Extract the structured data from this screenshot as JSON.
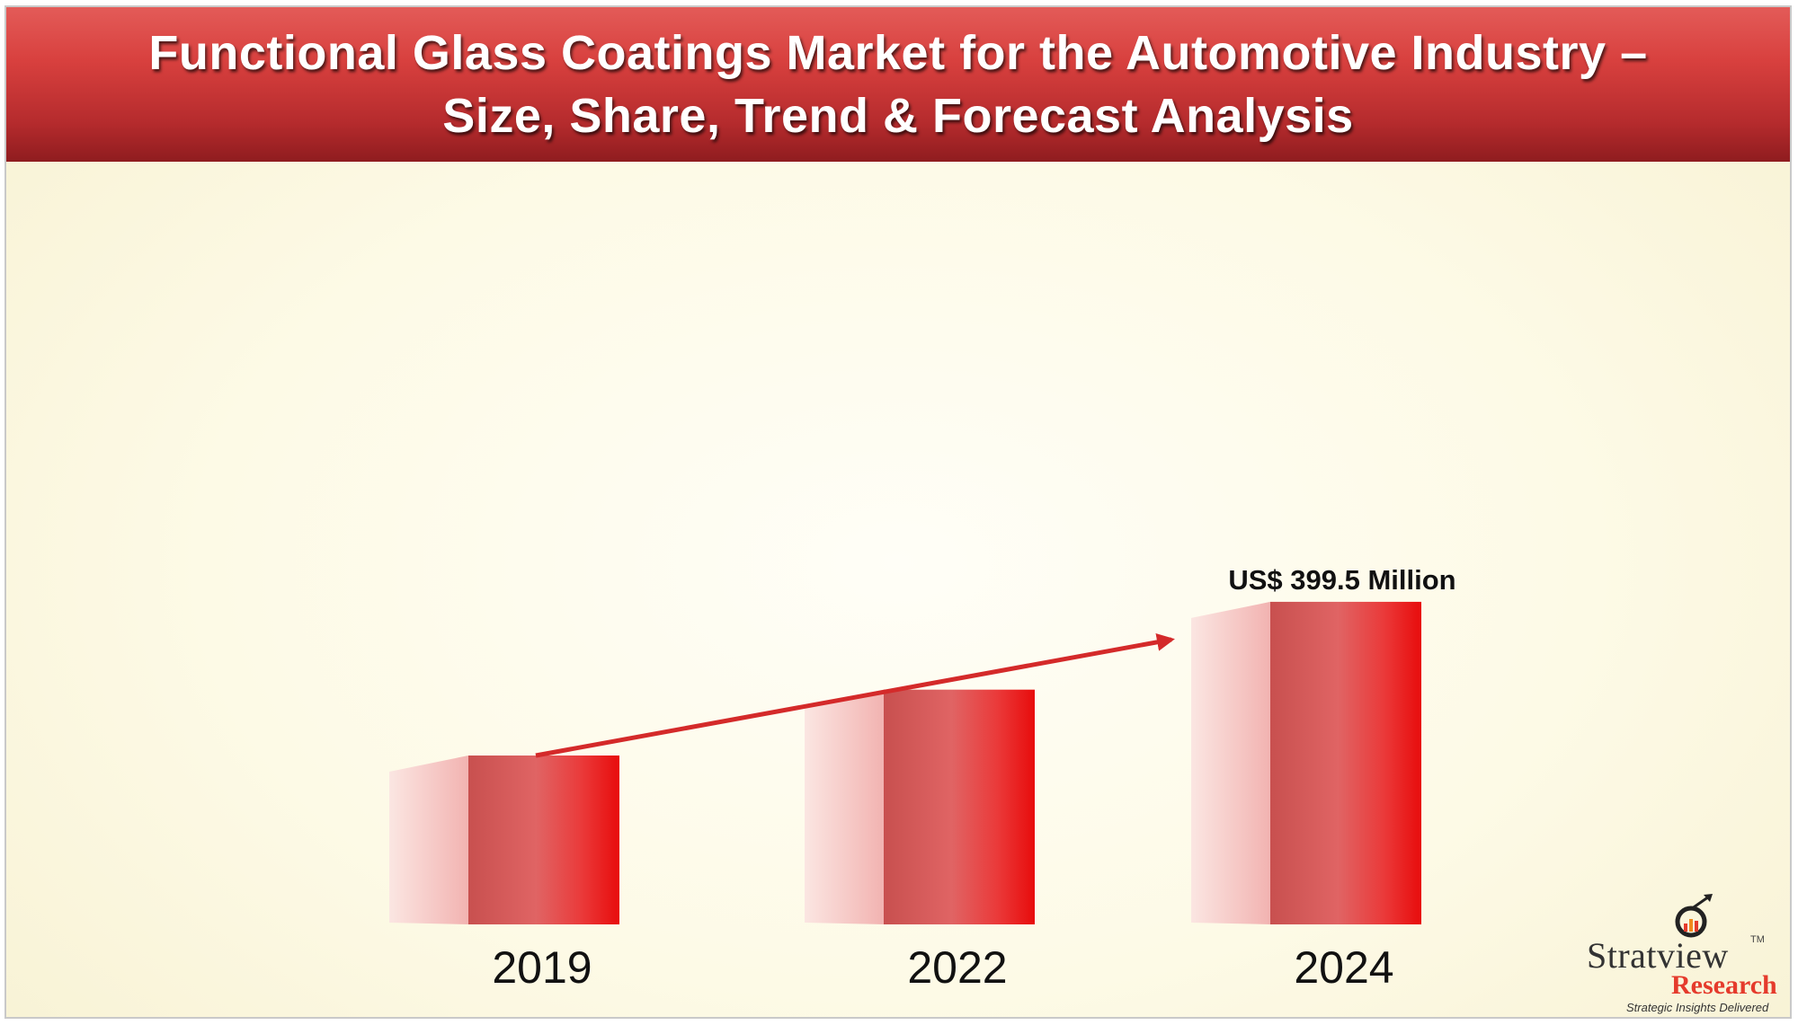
{
  "header": {
    "title_line1": "Functional Glass Coatings Market for the Automotive Industry –",
    "title_line2": "Size, Share, Trend & Forecast Analysis"
  },
  "chart_data": {
    "type": "bar",
    "categories": [
      "2019",
      "2022",
      "2024"
    ],
    "values": [
      1.0,
      1.39,
      1.91
    ],
    "value_labels": [
      "",
      "",
      "US$ 399.5 Million"
    ],
    "title": "Functional Glass Coatings Market for the Automotive Industry – Size, Share, Trend & Forecast Analysis",
    "xlabel": "",
    "ylabel": "",
    "grid": false,
    "legend": "none",
    "trend_arrow": true,
    "colors": {
      "bar_front": "#e24a4a",
      "bar_side": "#f4b8b8",
      "arrow": "#d42a2a"
    }
  },
  "logo": {
    "brand": "Stratview",
    "tm": "TM",
    "sub": "Research",
    "tagline": "Strategic Insights Delivered"
  },
  "colors": {
    "header": "#c2302f",
    "background": "#fdf9e3"
  }
}
